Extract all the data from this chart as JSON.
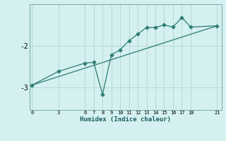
{
  "xlabel": "Humidex (Indice chaleur)",
  "bg_color": "#d4f0f0",
  "grid_color": "#b8d8d8",
  "line_color": "#2e7d72",
  "scatter_x": [
    0,
    3,
    6,
    7,
    8,
    9,
    10,
    11,
    12,
    13,
    14,
    15,
    16,
    17,
    18,
    21
  ],
  "scatter_y": [
    -2.95,
    -2.62,
    -2.42,
    -2.4,
    -3.18,
    -2.22,
    -2.1,
    -1.88,
    -1.72,
    -1.56,
    -1.56,
    -1.5,
    -1.55,
    -1.32,
    -1.55,
    -1.52
  ],
  "trend_x": [
    0,
    21
  ],
  "trend_y": [
    -2.95,
    -1.52
  ],
  "ylim": [
    -3.55,
    -1.0
  ],
  "xlim": [
    -0.3,
    21.5
  ],
  "yticks": [
    -3,
    -2,
    -1
  ],
  "ytick_labels": [
    "-3",
    "-2",
    ""
  ],
  "xticks": [
    0,
    3,
    6,
    7,
    8,
    9,
    10,
    11,
    12,
    13,
    14,
    15,
    16,
    17,
    18,
    21
  ]
}
